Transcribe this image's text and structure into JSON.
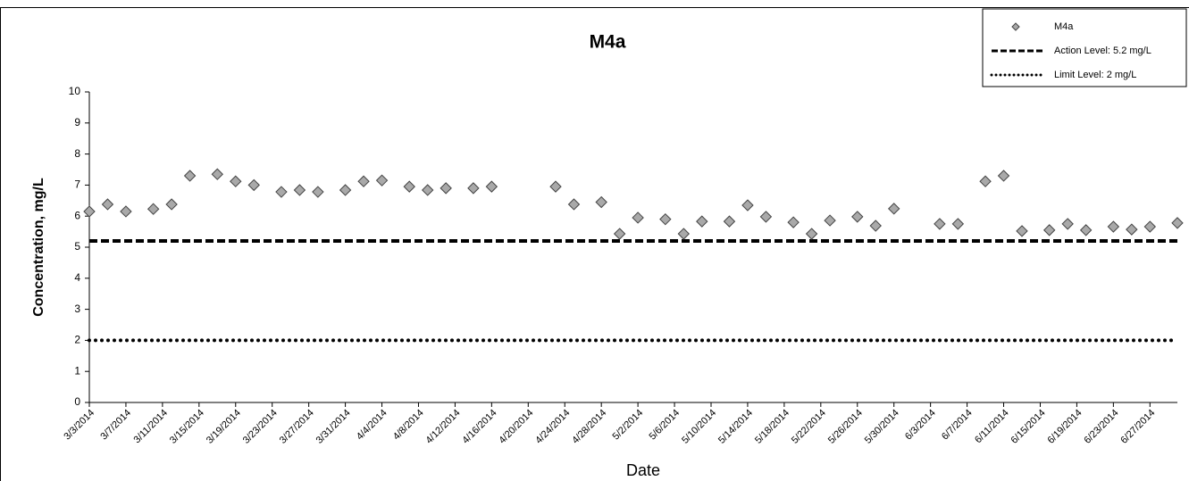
{
  "chart_data": {
    "type": "scatter",
    "title": "M4a",
    "x_label": "Date",
    "y_label": "Concentration, mg/L",
    "series": [
      {
        "name": "M4a",
        "color": "#a9a9a9",
        "x": [
          "3/3/2014",
          "3/5/2014",
          "3/7/2014",
          "3/10/2014",
          "3/12/2014",
          "3/14/2014",
          "3/17/2014",
          "3/19/2014",
          "3/21/2014",
          "3/24/2014",
          "3/26/2014",
          "3/28/2014",
          "3/31/2014",
          "4/2/2014",
          "4/4/2014",
          "4/7/2014",
          "4/9/2014",
          "4/11/2014",
          "4/14/2014",
          "4/16/2014",
          "4/23/2014",
          "4/25/2014",
          "4/28/2014",
          "4/30/2014",
          "5/2/2014",
          "5/5/2014",
          "5/7/2014",
          "5/9/2014",
          "5/12/2014",
          "5/14/2014",
          "5/16/2014",
          "5/19/2014",
          "5/21/2014",
          "5/23/2014",
          "5/26/2014",
          "5/28/2014",
          "5/30/2014",
          "6/4/2014",
          "6/6/2014",
          "6/9/2014",
          "6/11/2014",
          "6/13/2014",
          "6/16/2014",
          "6/18/2014",
          "6/20/2014",
          "6/23/2014",
          "6/25/2014",
          "6/27/2014",
          "6/30/2014"
        ],
        "values": [
          6.15,
          6.38,
          6.15,
          6.23,
          6.38,
          7.3,
          7.35,
          7.12,
          7.0,
          6.78,
          6.84,
          6.78,
          6.84,
          7.12,
          7.15,
          6.95,
          6.84,
          6.9,
          6.9,
          6.95,
          6.95,
          6.38,
          6.45,
          5.43,
          5.95,
          5.9,
          5.43,
          5.83,
          5.83,
          6.35,
          5.98,
          5.8,
          5.43,
          5.86,
          5.98,
          5.69,
          6.24,
          5.75,
          5.75,
          7.12,
          7.3,
          5.52,
          5.55,
          5.75,
          5.55,
          5.66,
          5.57,
          5.66,
          5.78
        ]
      }
    ],
    "reference_lines": [
      {
        "name": "Action Level: 5.2 mg/L",
        "value": 5.2,
        "style": "dashed",
        "color": "#000000"
      },
      {
        "name": "Limit Level: 2 mg/L",
        "value": 2,
        "style": "dotted",
        "color": "#000000"
      }
    ],
    "xlim": [
      "3/3/2014",
      "6/30/2014"
    ],
    "xticks": [
      "3/3/2014",
      "3/7/2014",
      "3/11/2014",
      "3/15/2014",
      "3/19/2014",
      "3/23/2014",
      "3/27/2014",
      "3/31/2014",
      "4/4/2014",
      "4/8/2014",
      "4/12/2014",
      "4/16/2014",
      "4/20/2014",
      "4/24/2014",
      "4/28/2014",
      "5/2/2014",
      "5/6/2014",
      "5/10/2014",
      "5/14/2014",
      "5/18/2014",
      "5/22/2014",
      "5/26/2014",
      "5/30/2014",
      "6/3/2014",
      "6/7/2014",
      "6/11/2014",
      "6/15/2014",
      "6/19/2014",
      "6/23/2014",
      "6/27/2014"
    ],
    "ylim": [
      0,
      10
    ],
    "yticks": [
      0,
      1,
      2,
      3,
      4,
      5,
      6,
      7,
      8,
      9,
      10
    ],
    "legend": "top-right"
  }
}
